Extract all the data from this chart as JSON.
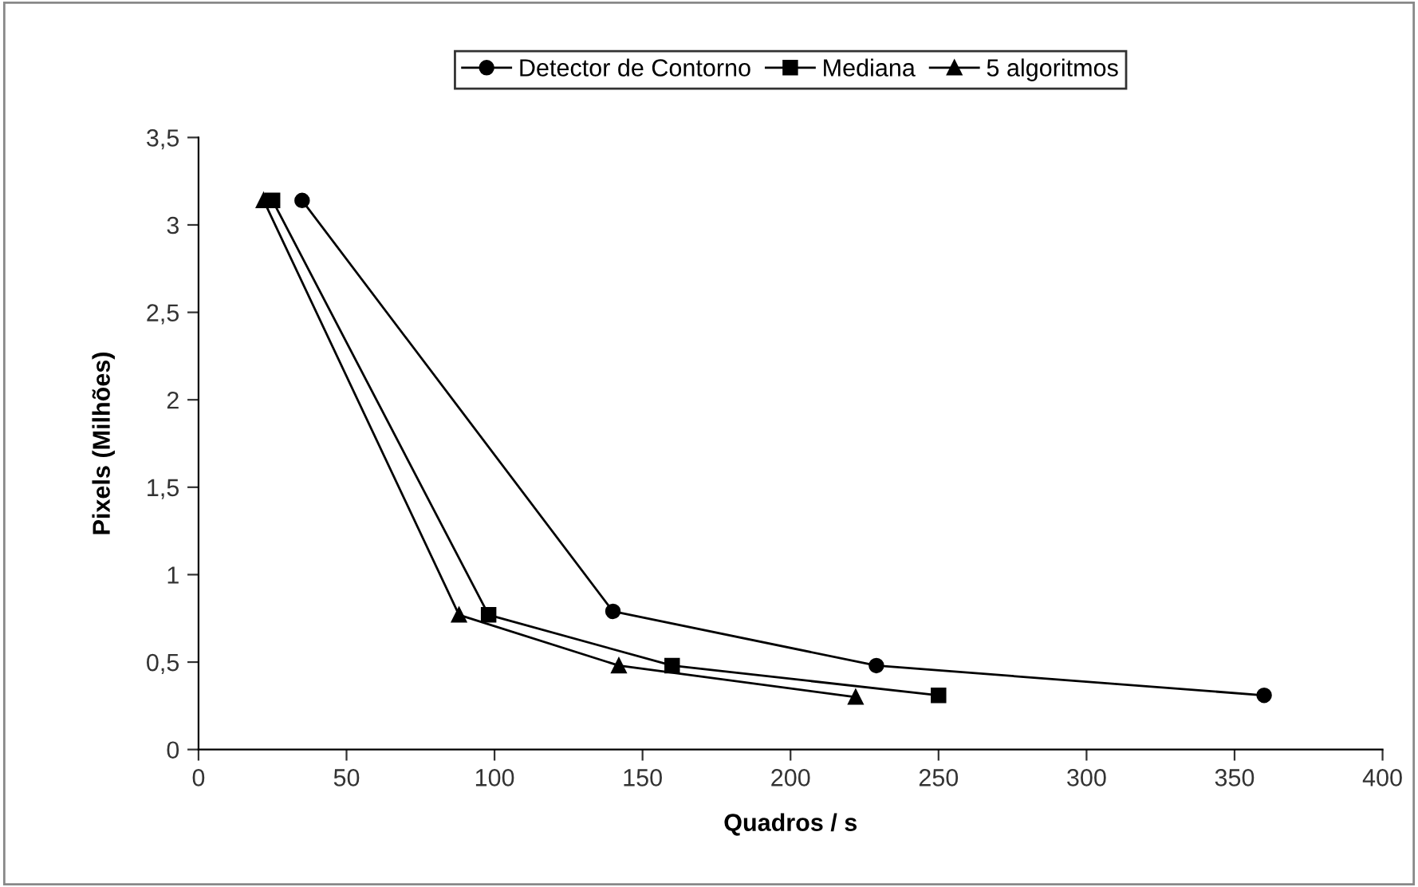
{
  "chart_data": {
    "type": "line",
    "xlabel": "Quadros / s",
    "ylabel": "Pixels (Milhões)",
    "series": [
      {
        "name": "Detector de Contorno",
        "color": "#000000",
        "marker": "circle",
        "x": [
          35,
          140,
          229,
          360
        ],
        "values": [
          3.14,
          0.79,
          0.48,
          0.31
        ]
      },
      {
        "name": "Mediana",
        "color": "#000000",
        "marker": "square",
        "x": [
          25,
          98,
          160,
          250
        ],
        "values": [
          3.14,
          0.77,
          0.48,
          0.31
        ]
      },
      {
        "name": "5 algoritmos",
        "color": "#000000",
        "marker": "triangle",
        "x": [
          22,
          88,
          142,
          222
        ],
        "values": [
          3.14,
          0.77,
          0.48,
          0.3
        ]
      }
    ],
    "xlim": [
      0,
      400
    ],
    "xticks": [
      0,
      50,
      100,
      150,
      200,
      250,
      300,
      350,
      400
    ],
    "ylim": [
      0,
      3.5
    ],
    "yticks": [
      0,
      {
        "value": 0.5,
        "label": "0,5"
      },
      1,
      {
        "value": 1.5,
        "label": "1,5"
      },
      2,
      {
        "value": 2.5,
        "label": "2,5"
      },
      3,
      {
        "value": 3.5,
        "label": "3,5"
      }
    ],
    "grid": false,
    "legend": "top",
    "line_style": "solid"
  }
}
